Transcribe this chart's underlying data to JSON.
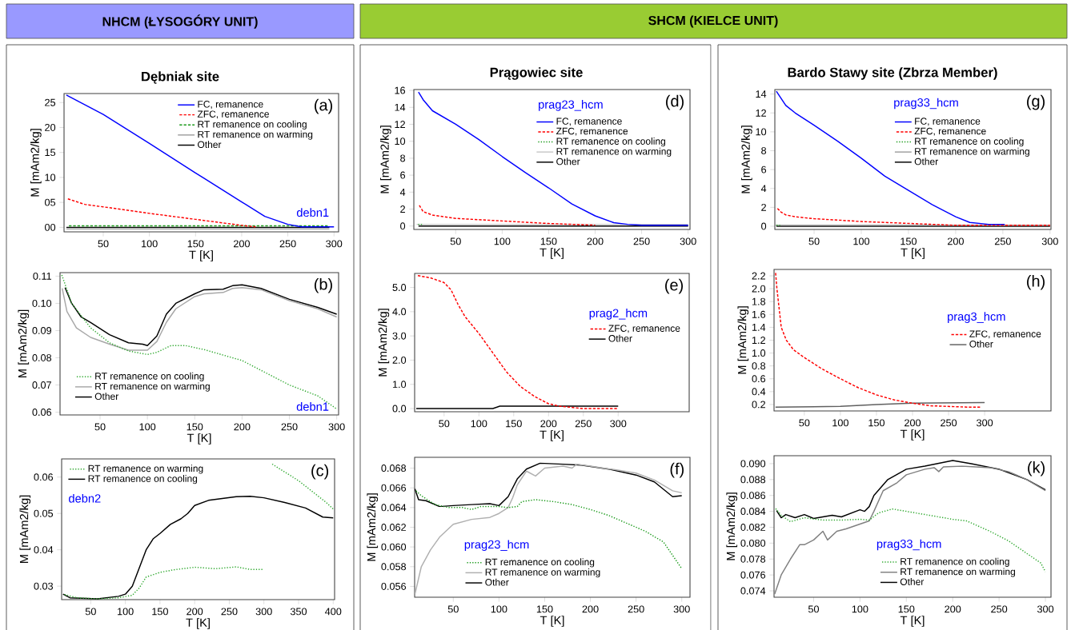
{
  "chart_data": [
    {
      "type": "line",
      "title": "Dębniak site",
      "xlabel": "T [K]",
      "ylabel": "M [mAm2/kg]",
      "annotations": [
        "NHCM (ŁYSOGÓRY UNIT)",
        "(a)",
        "debn1"
      ],
      "legend": "top right",
      "xlim": [
        7.5,
        305
      ],
      "ylim": [
        -0.9,
        26.8
      ],
      "xticks": [
        50,
        100,
        150,
        200,
        250,
        300
      ],
      "yticks": [
        {
          "value": 0,
          "label": "00"
        },
        {
          "value": 5,
          "label": "05"
        },
        10,
        15,
        20,
        25
      ],
      "series": [
        {
          "name": "FC, remanence",
          "color": "#0000ff",
          "line_style": "solid",
          "x": [
            10,
            50,
            100,
            150,
            200,
            225,
            250,
            265,
            300
          ],
          "values": [
            26.5,
            22.6,
            16.8,
            10.9,
            5.1,
            2.2,
            0.6,
            0.1,
            0.1
          ]
        },
        {
          "name": "ZFC, remanence",
          "color": "#ff0000",
          "line_style": "dashed",
          "x": [
            10,
            30,
            50,
            100,
            150,
            200,
            215
          ],
          "values": [
            5.8,
            4.6,
            4.1,
            2.8,
            1.6,
            0.4,
            0.1
          ]
        },
        {
          "name": "RT remanence on cooling",
          "color": "#1a9a1a",
          "line_style": "dashed",
          "x": [
            11,
            150,
            295
          ],
          "values": [
            0.3,
            0.3,
            0.3
          ]
        },
        {
          "name": "RT remanence on warming",
          "color": "#a0a0a0",
          "line_style": "solid",
          "x": [
            10,
            150,
            295
          ],
          "values": [
            -0.3,
            -0.3,
            -0.3
          ]
        },
        {
          "name": "Other",
          "color": "#000000",
          "line_style": "solid",
          "x": [
            10,
            150,
            295
          ],
          "values": [
            0.0,
            0.0,
            0.0
          ]
        }
      ]
    },
    {
      "type": "line",
      "xlabel": "T [K]",
      "ylabel": "M [mAm2/kg]",
      "annotations": [
        "(b)",
        "debn1"
      ],
      "legend": "bottom left",
      "xlim": [
        7.7,
        302
      ],
      "ylim": [
        0.059,
        0.1113
      ],
      "xticks": [
        50,
        100,
        150,
        200,
        250,
        300
      ],
      "yticks": [
        0.06,
        0.07,
        0.08,
        0.09,
        {
          "value": 0.1,
          "label": "0.10"
        },
        0.11
      ],
      "series": [
        {
          "name": "RT remanence on cooling",
          "color": "#33aa33",
          "line_style": "dotted",
          "x": [
            9,
            20,
            40,
            60,
            80,
            100,
            110,
            125,
            140,
            160,
            200,
            250,
            280,
            300
          ],
          "values": [
            0.111,
            0.1,
            0.091,
            0.0855,
            0.0825,
            0.0812,
            0.082,
            0.0845,
            0.0845,
            0.083,
            0.079,
            0.07,
            0.066,
            0.0612
          ]
        },
        {
          "name": "RT remanence on warming",
          "color": "#a8a8a8",
          "line_style": "solid",
          "x": [
            10,
            15,
            25,
            40,
            60,
            80,
            100,
            110,
            120,
            130,
            150,
            160,
            180,
            190,
            200,
            220,
            250,
            280,
            300
          ],
          "values": [
            0.1055,
            0.097,
            0.091,
            0.0875,
            0.085,
            0.0828,
            0.0828,
            0.086,
            0.093,
            0.098,
            0.1025,
            0.1035,
            0.104,
            0.1055,
            0.1058,
            0.105,
            0.101,
            0.098,
            0.095
          ]
        },
        {
          "name": "Other",
          "color": "#000000",
          "line_style": "solid",
          "x": [
            13,
            20,
            30,
            40,
            60,
            80,
            95,
            100,
            110,
            120,
            130,
            150,
            160,
            180,
            190,
            200,
            220,
            250,
            280,
            300
          ],
          "values": [
            0.1058,
            0.1,
            0.095,
            0.093,
            0.0885,
            0.0855,
            0.085,
            0.0845,
            0.088,
            0.096,
            0.1,
            0.1035,
            0.105,
            0.1052,
            0.1065,
            0.1068,
            0.1055,
            0.1015,
            0.0985,
            0.096
          ]
        }
      ]
    },
    {
      "type": "line",
      "xlabel": "T [K]",
      "ylabel": "M [mAm2/kg]",
      "annotations": [
        "(c)",
        "debn2"
      ],
      "legend": "top left",
      "xlim": [
        8,
        402
      ],
      "ylim": [
        0.0263,
        0.065
      ],
      "xticks": [
        50,
        100,
        150,
        200,
        250,
        300,
        350,
        400
      ],
      "yticks": [
        0.03,
        0.04,
        0.05,
        0.06
      ],
      "series": [
        {
          "name": "RT remanence on warming",
          "color": "#33aa33",
          "line_style": "dotted",
          "x": [
            10,
            30,
            60,
            90,
            110,
            120,
            130,
            150,
            170,
            200,
            230,
            260,
            280,
            300,
            null,
            310,
            350,
            390,
            400
          ],
          "values": [
            0.0278,
            0.0268,
            0.0265,
            0.0268,
            0.0275,
            0.0295,
            0.0325,
            0.0338,
            0.0345,
            0.0352,
            0.0348,
            0.0353,
            0.0346,
            0.0346,
            null,
            0.0638,
            0.059,
            0.053,
            0.0512
          ]
        },
        {
          "name": "RT remanence on cooling",
          "color": "#000000",
          "line_style": "solid",
          "x": [
            10,
            20,
            60,
            90,
            100,
            110,
            120,
            130,
            140,
            150,
            165,
            180,
            190,
            200,
            220,
            260,
            280,
            300,
            330,
            360,
            385,
            400
          ],
          "values": [
            0.0278,
            0.0268,
            0.0265,
            0.0272,
            0.0278,
            0.03,
            0.035,
            0.04,
            0.043,
            0.0445,
            0.047,
            0.0485,
            0.05,
            0.0522,
            0.0536,
            0.0546,
            0.0547,
            0.0543,
            0.053,
            0.0515,
            0.049,
            0.0488
          ]
        }
      ]
    },
    {
      "type": "line",
      "title": "Prągowiec site",
      "xlabel": "T [K]",
      "ylabel": "M [mAm2/kg]",
      "annotations": [
        "SHCM (KIELCE UNIT)",
        "(d)",
        "prag23_hcm"
      ],
      "legend": "top right",
      "xlim": [
        5,
        302
      ],
      "ylim": [
        -0.4,
        16.1
      ],
      "xticks": [
        50,
        100,
        150,
        200,
        250,
        300
      ],
      "yticks": [
        0,
        2,
        4,
        6,
        8,
        10,
        12,
        14,
        16
      ],
      "series": [
        {
          "name": "FC, remanence",
          "color": "#0000ff",
          "line_style": "solid",
          "x": [
            10,
            15,
            25,
            50,
            75,
            100,
            125,
            150,
            175,
            200,
            220,
            235,
            250,
            300
          ],
          "values": [
            15.8,
            14.9,
            13.6,
            12.0,
            10.2,
            8.2,
            6.3,
            4.5,
            2.6,
            1.2,
            0.4,
            0.2,
            0.1,
            0.1
          ]
        },
        {
          "name": "ZFC, remanence",
          "color": "#ff0000",
          "line_style": "dashed",
          "x": [
            10,
            15,
            25,
            50,
            100,
            150,
            200
          ],
          "values": [
            2.6,
            1.7,
            1.3,
            0.9,
            0.6,
            0.3,
            0.1
          ]
        },
        {
          "name": "RT remanence on cooling",
          "color": "#1a9a1a",
          "line_style": "dotted",
          "x": [
            8,
            14
          ],
          "values": [
            0.2,
            0.2
          ]
        },
        {
          "name": "RT remanence on warming",
          "color": "#c8c8c8",
          "line_style": "solid",
          "x": [
            8,
            150,
            300
          ],
          "values": [
            0.2,
            0.2,
            0.2
          ]
        },
        {
          "name": "Other",
          "color": "#000000",
          "line_style": "solid",
          "x": [
            10,
            150,
            300
          ],
          "values": [
            0.0,
            0.0,
            0.0
          ]
        }
      ]
    },
    {
      "type": "line",
      "xlabel": "T [K]",
      "ylabel": "M [mAm2/kg]",
      "annotations": [
        "(e)",
        "prag2_hcm"
      ],
      "legend": "right",
      "xlim": [
        7.7,
        402
      ],
      "ylim": [
        -0.13,
        5.58
      ],
      "xticks": [
        50,
        100,
        150,
        200,
        250,
        300
      ],
      "yticks": [
        {
          "value": 0,
          "label": "0.0"
        },
        {
          "value": 1,
          "label": "1.0"
        },
        {
          "value": 2,
          "label": "2.0"
        },
        {
          "value": 3,
          "label": "3.0"
        },
        {
          "value": 4,
          "label": "4.0"
        },
        {
          "value": 5,
          "label": "5.0"
        }
      ],
      "series": [
        {
          "name": "ZFC, remanence",
          "color": "#ff0000",
          "line_style": "dashed",
          "x": [
            10,
            30,
            50,
            60,
            70,
            80,
            100,
            120,
            140,
            160,
            180,
            200,
            215,
            250,
            300
          ],
          "values": [
            5.5,
            5.4,
            5.2,
            4.9,
            4.3,
            3.8,
            3.1,
            2.3,
            1.5,
            0.9,
            0.5,
            0.2,
            0.1,
            0.0,
            0.0
          ]
        },
        {
          "name": "Other",
          "color": "#000000",
          "line_style": "solid",
          "x": [
            10,
            120,
            130,
            300
          ],
          "values": [
            0.0,
            0.0,
            0.1,
            0.1
          ]
        }
      ]
    },
    {
      "type": "line",
      "xlabel": "T [K]",
      "ylabel": "M [mAm2/kg]",
      "annotations": [
        "(f)",
        "prag23_hcm"
      ],
      "legend": "bottom left",
      "xlim": [
        7.7,
        309
      ],
      "ylim": [
        0.0549,
        0.0691
      ],
      "xticks": [
        50,
        100,
        150,
        200,
        250,
        300
      ],
      "yticks": [
        0.056,
        0.058,
        {
          "value": 0.06,
          "label": "0.060"
        },
        0.062,
        0.064,
        0.066,
        0.068
      ],
      "series": [
        {
          "name": "RT remanence on cooling",
          "color": "#1a9a1a",
          "line_style": "dotted",
          "x": [
            8,
            15,
            30,
            45,
            60,
            70,
            80,
            100,
            110,
            120,
            125,
            140,
            160,
            180,
            200,
            220,
            240,
            260,
            280,
            300
          ],
          "values": [
            0.0658,
            0.0652,
            0.0643,
            0.064,
            0.064,
            0.0638,
            0.0641,
            0.0641,
            0.064,
            0.0641,
            0.0646,
            0.0648,
            0.0646,
            0.0643,
            0.0638,
            0.0632,
            0.0624,
            0.0616,
            0.0605,
            0.0578
          ]
        },
        {
          "name": "RT remanence on warming",
          "color": "#b0b0b0",
          "line_style": "solid",
          "x": [
            8,
            15,
            25,
            35,
            50,
            70,
            90,
            100,
            110,
            115,
            120,
            130,
            140,
            150,
            170,
            180,
            185,
            200,
            230,
            250,
            270,
            290,
            300
          ],
          "values": [
            0.0552,
            0.058,
            0.0597,
            0.061,
            0.0623,
            0.0628,
            0.063,
            0.0634,
            0.064,
            0.065,
            0.0663,
            0.0677,
            0.0672,
            0.068,
            0.0682,
            0.068,
            0.0684,
            0.0682,
            0.0678,
            0.0675,
            0.0668,
            0.0657,
            0.0655
          ]
        },
        {
          "name": "Other",
          "color": "#000000",
          "line_style": "solid",
          "x": [
            8,
            12,
            20,
            35,
            50,
            70,
            90,
            100,
            110,
            120,
            130,
            145,
            170,
            190,
            220,
            250,
            270,
            290,
            300
          ],
          "values": [
            0.0659,
            0.0648,
            0.0647,
            0.0641,
            0.0642,
            0.0643,
            0.0644,
            0.0642,
            0.0651,
            0.0669,
            0.0679,
            0.0685,
            0.0684,
            0.0683,
            0.0679,
            0.0673,
            0.0666,
            0.0651,
            0.0652
          ]
        }
      ]
    },
    {
      "type": "line",
      "title": "Bardo Stawy site (Zbrza Member)",
      "xlabel": "T [K]",
      "ylabel": "M [mAm2/kg]",
      "annotations": [
        "(g)",
        "prag33_hcm"
      ],
      "legend": "top right",
      "xlim": [
        8.4,
        301
      ],
      "ylim": [
        -0.34,
        14.48
      ],
      "xticks": [
        50,
        100,
        150,
        200,
        250,
        300
      ],
      "yticks": [
        0,
        2,
        4,
        6,
        8,
        10,
        12,
        14
      ],
      "series": [
        {
          "name": "FC, remanence",
          "color": "#0000ff",
          "line_style": "solid",
          "x": [
            10,
            20,
            30,
            50,
            75,
            100,
            125,
            150,
            175,
            200,
            215,
            235,
            252
          ],
          "values": [
            14.3,
            12.8,
            12.0,
            10.7,
            9.0,
            7.2,
            5.3,
            3.8,
            2.3,
            1.0,
            0.4,
            0.2,
            0.2
          ]
        },
        {
          "name": "ZFC, remanence",
          "color": "#ff0000",
          "line_style": "dashed",
          "x": [
            10,
            15,
            20,
            30,
            50,
            100,
            150,
            200,
            300
          ],
          "values": [
            2.0,
            1.5,
            1.2,
            1.0,
            0.8,
            0.5,
            0.3,
            0.1,
            0.1
          ]
        },
        {
          "name": "RT remanence on cooling",
          "color": "#1a9a1a",
          "line_style": "dotted",
          "x": [
            8.5,
            14
          ],
          "values": [
            0.1,
            0.1
          ]
        },
        {
          "name": "RT remanence on warming",
          "color": "#a0a0a0",
          "line_style": "solid",
          "x": [
            9,
            150,
            300
          ],
          "values": [
            0.1,
            0.1,
            0.1
          ]
        },
        {
          "name": "Other",
          "color": "#000000",
          "line_style": "solid",
          "x": [
            10,
            150,
            300
          ],
          "values": [
            0.0,
            0.0,
            0.0
          ]
        }
      ]
    },
    {
      "type": "line",
      "xlabel": "T [K]",
      "ylabel": "M [mAm2/kg]",
      "annotations": [
        "(h)",
        "prag3_hcm"
      ],
      "legend": "right",
      "xlim": [
        8,
        392
      ],
      "ylim": [
        0.1,
        2.3
      ],
      "xticks": [
        50,
        100,
        150,
        200,
        250,
        300
      ],
      "yticks": [
        0.2,
        0.4,
        0.6,
        0.8,
        {
          "value": 1,
          "label": "1.0"
        },
        1.2,
        1.4,
        1.6,
        1.8,
        {
          "value": 2,
          "label": "2.0"
        },
        2.2
      ],
      "series": [
        {
          "name": "ZFC, remanence",
          "color": "#ff0000",
          "line_style": "dashed",
          "x": [
            10,
            12,
            15,
            18,
            25,
            35,
            50,
            75,
            100,
            125,
            150,
            175,
            200,
            225,
            250,
            275,
            295
          ],
          "values": [
            2.27,
            2.0,
            1.7,
            1.4,
            1.2,
            1.05,
            0.93,
            0.75,
            0.6,
            0.46,
            0.35,
            0.27,
            0.22,
            0.18,
            0.17,
            0.16,
            0.16
          ]
        },
        {
          "name": "Other",
          "color": "#606060",
          "line_style": "solid",
          "x": [
            10,
            100,
            150,
            200,
            300
          ],
          "values": [
            0.16,
            0.17,
            0.2,
            0.22,
            0.23
          ]
        }
      ]
    },
    {
      "type": "line",
      "xlabel": "T [K]",
      "ylabel": "M [mAm2/kg]",
      "annotations": [
        "(k)",
        "prag33_hcm"
      ],
      "xlim": [
        7.3,
        306
      ],
      "ylim": [
        0.0732,
        0.091
      ],
      "xticks": [
        50,
        100,
        150,
        200,
        250,
        300
      ],
      "yticks": [
        0.074,
        0.076,
        0.078,
        {
          "value": 0.08,
          "label": "0.080"
        },
        0.082,
        0.084,
        0.086,
        0.088,
        {
          "value": 0.09,
          "label": "0.090"
        }
      ],
      "legend": "bottom",
      "series": [
        {
          "name": "RT remanence on cooling",
          "color": "#33aa33",
          "line_style": "dotted",
          "x": [
            8,
            15,
            25,
            40,
            60,
            80,
            100,
            110,
            120,
            135,
            150,
            175,
            200,
            215,
            240,
            260,
            280,
            295,
            300
          ],
          "values": [
            0.0845,
            0.0835,
            0.0827,
            0.0832,
            0.0829,
            0.0829,
            0.083,
            0.0829,
            0.0838,
            0.0843,
            0.084,
            0.0835,
            0.083,
            0.0828,
            0.0815,
            0.0803,
            0.0787,
            0.0775,
            0.0764
          ]
        },
        {
          "name": "RT remanence on warming",
          "color": "#808080",
          "line_style": "solid",
          "x": [
            8,
            15,
            25,
            35,
            40,
            50,
            60,
            65,
            75,
            85,
            100,
            110,
            115,
            125,
            140,
            150,
            170,
            180,
            185,
            190,
            210,
            240,
            260,
            280,
            300
          ],
          "values": [
            0.0736,
            0.076,
            0.078,
            0.0798,
            0.0798,
            0.0804,
            0.0815,
            0.0804,
            0.0815,
            0.0818,
            0.0824,
            0.0828,
            0.084,
            0.0866,
            0.0876,
            0.0886,
            0.0893,
            0.0895,
            0.089,
            0.0896,
            0.0897,
            0.0895,
            0.089,
            0.088,
            0.0866
          ]
        },
        {
          "name": "Other",
          "color": "#000000",
          "line_style": "solid",
          "x": [
            10,
            15,
            20,
            30,
            40,
            50,
            70,
            80,
            100,
            105,
            110,
            115,
            130,
            150,
            170,
            200,
            220,
            250,
            280,
            300
          ],
          "values": [
            0.0841,
            0.0832,
            0.0836,
            0.0832,
            0.0836,
            0.0831,
            0.0835,
            0.0833,
            0.0842,
            0.084,
            0.0846,
            0.086,
            0.088,
            0.0893,
            0.0897,
            0.0904,
            0.09,
            0.0893,
            0.088,
            0.0867
          ]
        }
      ]
    }
  ]
}
